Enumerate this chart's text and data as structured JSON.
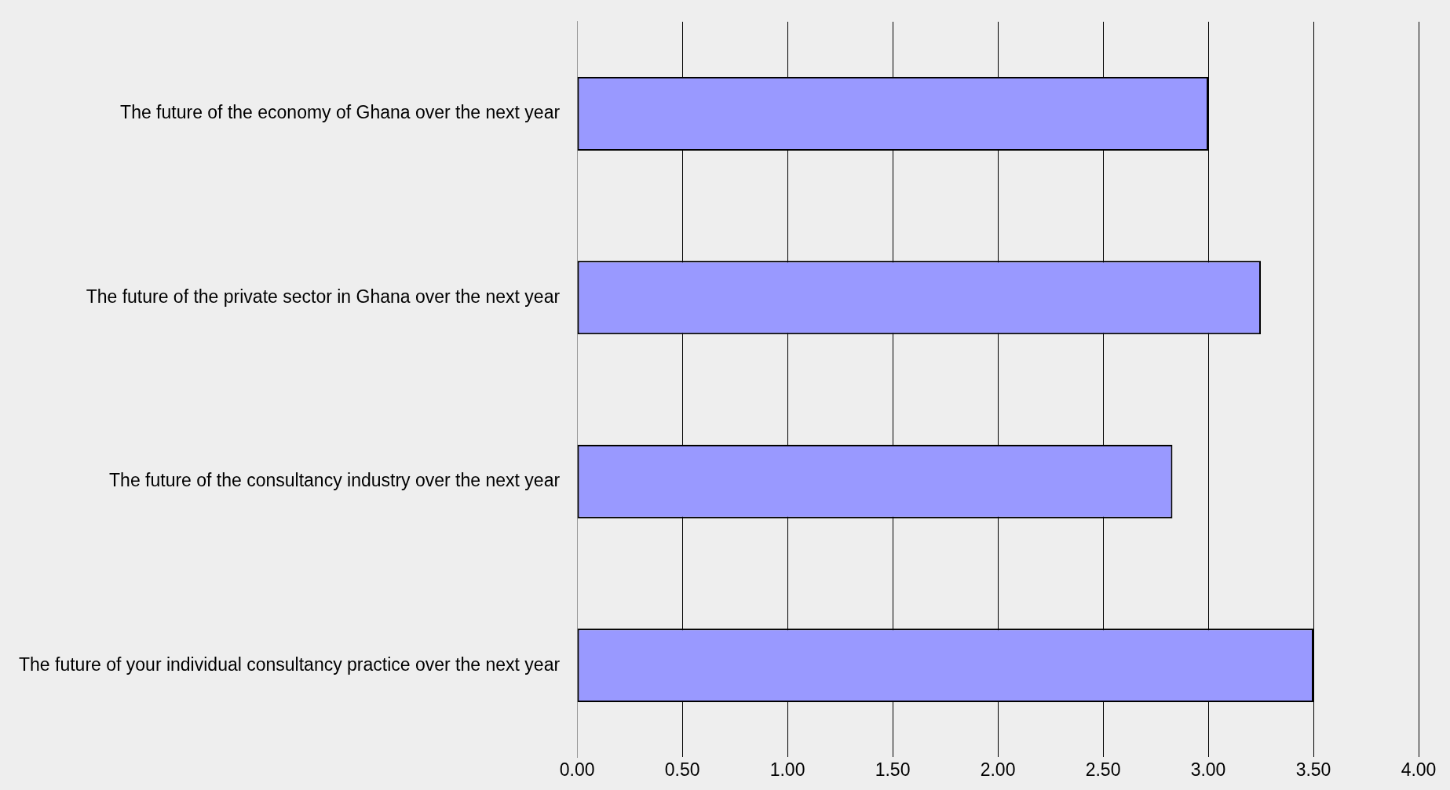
{
  "chart_data": {
    "type": "bar",
    "orientation": "horizontal",
    "categories": [
      "The future of the economy of Ghana over the next year",
      "The future of the private sector in Ghana over the next year",
      "The future of the consultancy industry over the next year",
      "The future of your individual consultancy practice over the next year"
    ],
    "values": [
      3.0,
      3.25,
      2.83,
      3.5
    ],
    "color": "#9999ff",
    "xlim": [
      0,
      4
    ],
    "xticks": [
      {
        "value": 0,
        "label": "0.00"
      },
      {
        "value": 0.5,
        "label": "0.50"
      },
      {
        "value": 1,
        "label": "1.00"
      },
      {
        "value": 1.5,
        "label": "1.50"
      },
      {
        "value": 2,
        "label": "2.00"
      },
      {
        "value": 2.5,
        "label": "2.50"
      },
      {
        "value": 3,
        "label": "3.00"
      },
      {
        "value": 3.5,
        "label": "3.50"
      },
      {
        "value": 4,
        "label": "4.00"
      }
    ],
    "grid": "x",
    "legend": false
  }
}
